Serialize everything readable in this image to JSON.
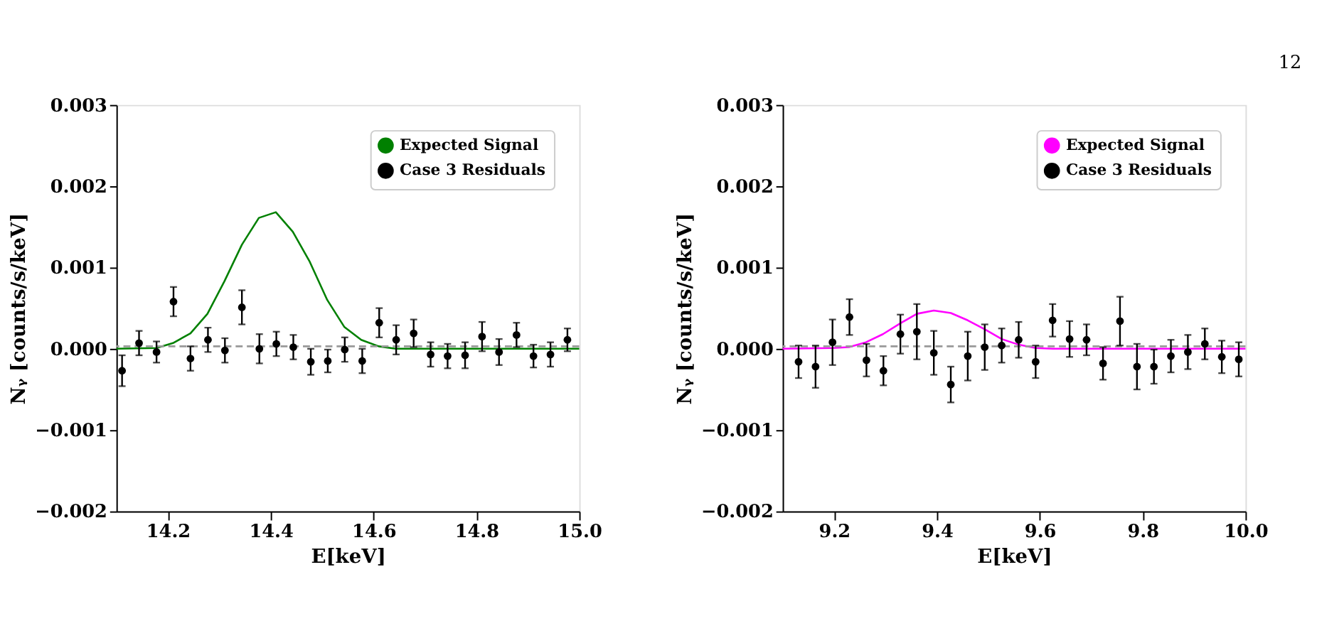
{
  "chart_data": [
    {
      "type": "scatter",
      "xlabel": "E[keV]",
      "ylabel": "Nᵧ [counts/s/keV]",
      "xlim": [
        14.1,
        15.0
      ],
      "ylim": [
        -0.002,
        0.003
      ],
      "xticks": [
        14.2,
        14.4,
        14.6,
        14.8,
        {
          "value": 15.0,
          "label": "15.0"
        }
      ],
      "yticks": [
        {
          "value": -0.002,
          "label": "−0.002"
        },
        {
          "value": -0.001,
          "label": "−0.001"
        },
        {
          "value": 0,
          "label": "0.000"
        },
        {
          "value": 0.001,
          "label": "0.001"
        },
        {
          "value": 0.002,
          "label": "0.002"
        },
        {
          "value": 0.003,
          "label": "0.003"
        }
      ],
      "legend": "top right",
      "grid": false,
      "ref_lines": [
        {
          "axis": "y",
          "value": 3e-05,
          "color": "#999999",
          "line_style": "dashed"
        }
      ],
      "series": [
        {
          "name": "Expected Signal",
          "type": "line",
          "color": "#008000",
          "marker": "none",
          "line_style": "solid",
          "x": [
            14.1,
            14.178,
            14.21,
            14.244,
            14.277,
            14.31,
            14.344,
            14.377,
            14.41,
            14.443,
            14.476,
            14.51,
            14.543,
            14.576,
            14.61,
            14.643,
            15.0
          ],
          "values": [
            0,
            1e-05,
            7e-05,
            0.00019,
            0.00043,
            0.00083,
            0.00128,
            0.00161,
            0.00168,
            0.00144,
            0.00107,
            0.0006,
            0.00027,
            0.00011,
            3e-05,
            0,
            0
          ]
        },
        {
          "name": "Case 3 Residuals",
          "type": "scatter",
          "color": "#000000",
          "marker": "circle",
          "x": [
            14.111,
            14.144,
            14.178,
            14.211,
            14.244,
            14.278,
            14.311,
            14.344,
            14.378,
            14.411,
            14.444,
            14.478,
            14.511,
            14.544,
            14.578,
            14.611,
            14.644,
            14.678,
            14.711,
            14.744,
            14.778,
            14.811,
            14.844,
            14.878,
            14.911,
            14.944,
            14.977
          ],
          "values": [
            -0.00027,
            7e-05,
            -4e-05,
            0.00058,
            -0.00012,
            0.00011,
            -2e-05,
            0.00051,
            0,
            6e-05,
            2e-05,
            -0.00016,
            -0.00015,
            -1e-05,
            -0.00015,
            0.00032,
            0.00011,
            0.00019,
            -7e-05,
            -9e-05,
            -8e-05,
            0.00015,
            -4e-05,
            0.00017,
            -9e-05,
            -7e-05,
            0.00011
          ],
          "errors": [
            0.00019,
            0.00015,
            0.00013,
            0.00018,
            0.00015,
            0.00015,
            0.00015,
            0.00021,
            0.00018,
            0.00015,
            0.00015,
            0.00016,
            0.00014,
            0.00015,
            0.00015,
            0.00018,
            0.00018,
            0.00017,
            0.00015,
            0.00015,
            0.00016,
            0.00018,
            0.00016,
            0.00015,
            0.00014,
            0.00015,
            0.00014
          ]
        }
      ]
    },
    {
      "type": "scatter",
      "xlabel": "E[keV]",
      "ylabel": "Nᵧ [counts/s/keV]",
      "xlim": [
        9.1,
        10.0
      ],
      "ylim": [
        -0.002,
        0.003
      ],
      "xticks": [
        9.2,
        9.4,
        9.6,
        9.8,
        {
          "value": 10.0,
          "label": "10.0"
        }
      ],
      "yticks": [
        {
          "value": -0.002,
          "label": "−0.002"
        },
        {
          "value": -0.001,
          "label": "−0.001"
        },
        {
          "value": 0,
          "label": "0.000"
        },
        {
          "value": 0.001,
          "label": "0.001"
        },
        {
          "value": 0.002,
          "label": "0.002"
        },
        {
          "value": 0.003,
          "label": "0.003"
        }
      ],
      "legend": "top right",
      "grid": false,
      "annotations": [
        "12"
      ],
      "ref_lines": [
        {
          "axis": "y",
          "value": 3e-05,
          "color": "#999999",
          "line_style": "dashed"
        }
      ],
      "series": [
        {
          "name": "Expected Signal",
          "type": "line",
          "color": "#ff00ff",
          "marker": "none",
          "line_style": "solid",
          "x": [
            9.1,
            9.197,
            9.229,
            9.262,
            9.295,
            9.328,
            9.361,
            9.394,
            9.427,
            9.46,
            9.493,
            9.526,
            9.559,
            9.592,
            9.625,
            10.0
          ],
          "values": [
            0,
            1e-05,
            2e-05,
            8e-05,
            0.00018,
            0.00031,
            0.00043,
            0.00047,
            0.00044,
            0.00035,
            0.00024,
            0.00012,
            5e-05,
            1e-05,
            0,
            0
          ]
        },
        {
          "name": "Case 3 Residuals",
          "type": "scatter",
          "color": "#000000",
          "marker": "circle",
          "x": [
            9.131,
            9.164,
            9.197,
            9.23,
            9.263,
            9.296,
            9.329,
            9.361,
            9.394,
            9.427,
            9.46,
            9.493,
            9.526,
            9.559,
            9.592,
            9.625,
            9.658,
            9.691,
            9.723,
            9.756,
            9.789,
            9.822,
            9.855,
            9.888,
            9.921,
            9.954,
            9.987
          ],
          "values": [
            -0.00016,
            -0.00022,
            8e-05,
            0.00039,
            -0.00014,
            -0.00027,
            0.00018,
            0.00021,
            -5e-05,
            -0.00044,
            -9e-05,
            2e-05,
            4e-05,
            0.00011,
            -0.00016,
            0.00035,
            0.00012,
            0.00011,
            -0.00018,
            0.00034,
            -0.00022,
            -0.00022,
            -9e-05,
            -4e-05,
            6e-05,
            -0.0001,
            -0.00013
          ],
          "errors": [
            0.0002,
            0.00026,
            0.00028,
            0.00022,
            0.0002,
            0.00018,
            0.00024,
            0.00034,
            0.00027,
            0.00022,
            0.0003,
            0.00028,
            0.00021,
            0.00022,
            0.0002,
            0.0002,
            0.00022,
            0.00019,
            0.0002,
            0.0003,
            0.00028,
            0.00021,
            0.0002,
            0.00021,
            0.00019,
            0.0002,
            0.00021
          ]
        }
      ]
    }
  ]
}
